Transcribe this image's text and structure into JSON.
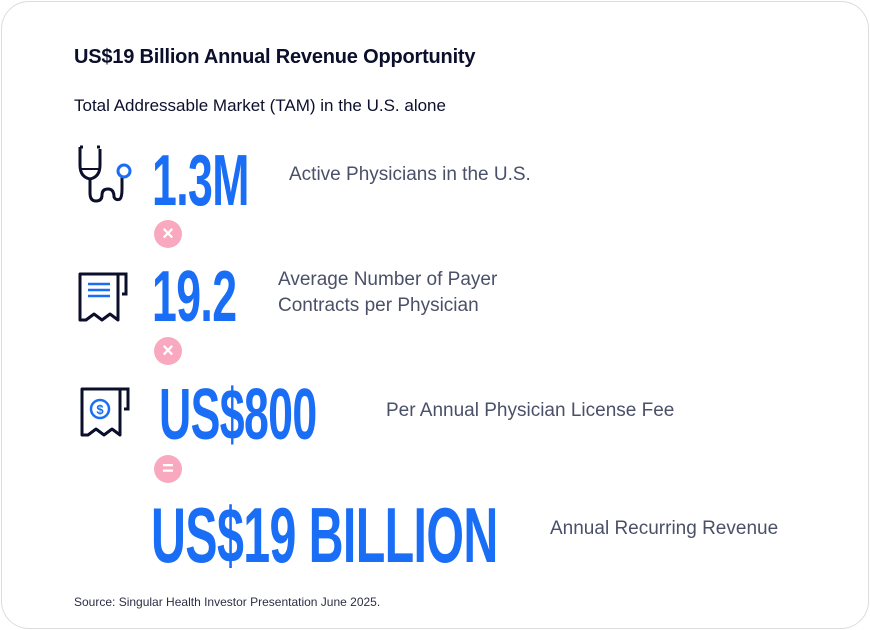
{
  "title": "US$19 Billion Annual Revenue Opportunity",
  "subtitle": "Total Addressable Market (TAM) in the U.S. alone",
  "rows": [
    {
      "icon": "stethoscope-icon",
      "value": "1.3M",
      "label": "Active Physicians in the U.S."
    },
    {
      "icon": "receipt-icon",
      "value": "19.2",
      "label_line1": "Average Number of Payer",
      "label_line2": "Contracts per Physician"
    },
    {
      "icon": "dollar-receipt-icon",
      "value": "US$800",
      "label": "Per Annual Physician License Fee"
    },
    {
      "value": "US$19 BILLION",
      "label": "Annual Recurring Revenue"
    }
  ],
  "operators": [
    "×",
    "×",
    "="
  ],
  "source": "Source: Singular Health Investor Presentation June 2025.",
  "colors": {
    "accent": "#1a6ef5",
    "operator": "#f9a9bf",
    "text": "#0b0f2b",
    "muted": "#4a5068"
  }
}
